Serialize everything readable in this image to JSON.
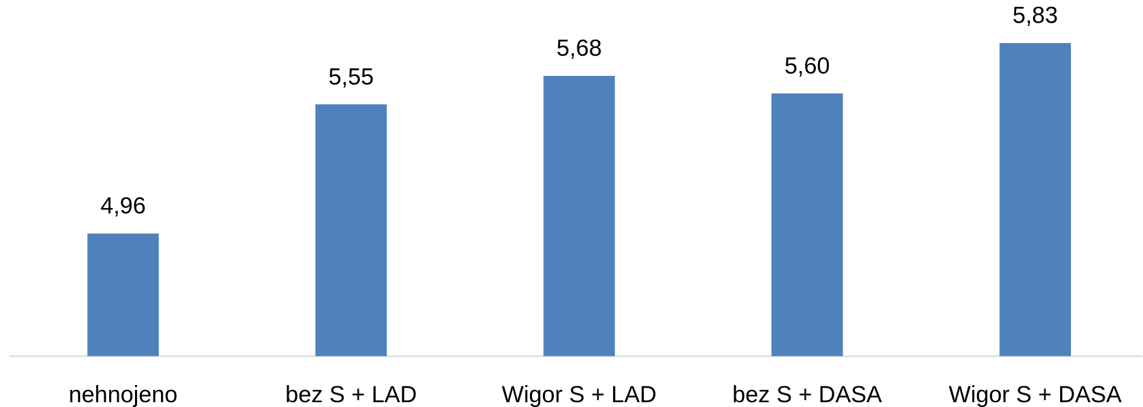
{
  "chart_data": {
    "type": "bar",
    "categories": [
      "nehnojeno",
      "bez S + LAD",
      "Wigor S + LAD",
      "bez S + DASA",
      "Wigor S + DASA"
    ],
    "values": [
      4.96,
      5.55,
      5.68,
      5.6,
      5.83
    ],
    "value_labels": [
      "4,96",
      "5,55",
      "5,68",
      "5,60",
      "5,83"
    ],
    "color": "#4f81bd",
    "ylim": [
      4.4,
      6.0
    ]
  }
}
